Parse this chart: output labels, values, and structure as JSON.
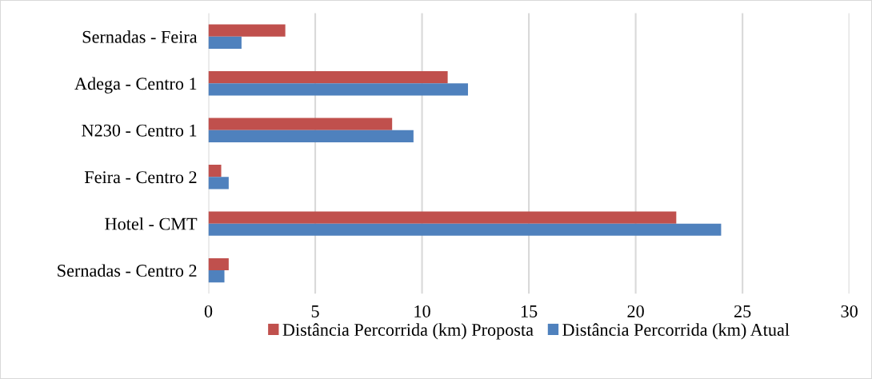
{
  "chart_data": {
    "type": "bar",
    "orientation": "horizontal",
    "categories": [
      "Sernadas - Feira",
      "Adega - Centro 1",
      "N230 - Centro 1",
      "Feira - Centro 2",
      "Hotel - CMT",
      "Sernadas - Centro 2"
    ],
    "series": [
      {
        "name": "Distância Percorrida (km) Proposta",
        "color": "#c0504d",
        "values": [
          3.6,
          11.2,
          8.6,
          0.6,
          21.9,
          0.95
        ]
      },
      {
        "name": "Distância Percorrida (km) Atual",
        "color": "#4f81bd",
        "values": [
          1.55,
          12.15,
          9.6,
          0.95,
          24.0,
          0.75
        ]
      }
    ],
    "xlim": [
      0,
      30
    ],
    "xticks": [
      0,
      5,
      10,
      15,
      20,
      25,
      30
    ],
    "grid": "x",
    "legend": "bottom"
  }
}
